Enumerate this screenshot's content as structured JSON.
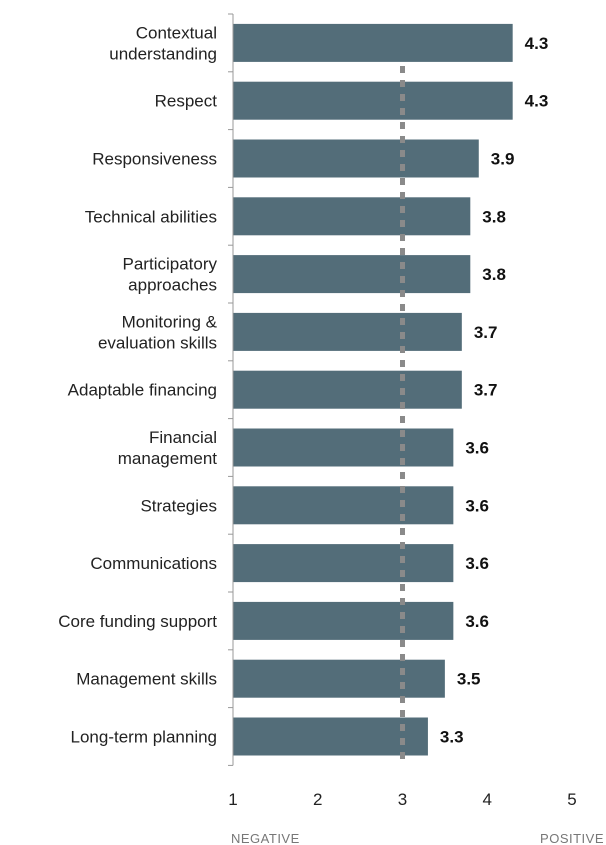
{
  "chart_data": {
    "type": "bar",
    "orientation": "horizontal",
    "categories": [
      "Contextual\nunderstanding",
      "Respect",
      "Responsiveness",
      "Technical abilities",
      "Participatory\napproaches",
      "Monitoring &\nevaluation skills",
      "Adaptable financing",
      "Financial\nmanagement",
      "Strategies",
      "Communications",
      "Core funding support",
      "Management skills",
      "Long-term planning"
    ],
    "values": [
      4.3,
      4.3,
      3.9,
      3.8,
      3.8,
      3.7,
      3.7,
      3.6,
      3.6,
      3.6,
      3.6,
      3.5,
      3.3
    ],
    "value_labels": [
      "4.3",
      "4.3",
      "3.9",
      "3.8",
      "3.8",
      "3.7",
      "3.7",
      "3.6",
      "3.6",
      "3.6",
      "3.6",
      "3.5",
      "3.3"
    ],
    "xlim": [
      1,
      5
    ],
    "xticks": [
      1,
      2,
      3,
      4,
      5
    ],
    "xtick_labels": [
      "1",
      "2",
      "3",
      "4",
      "5"
    ],
    "reference_line": 3,
    "scale_end_labels": {
      "low": "NEGATIVE",
      "high": "POSITIVE"
    },
    "grid": false,
    "legend": "none",
    "bar_color": "#536d79",
    "reference_line_color": "#8a8a8a"
  }
}
